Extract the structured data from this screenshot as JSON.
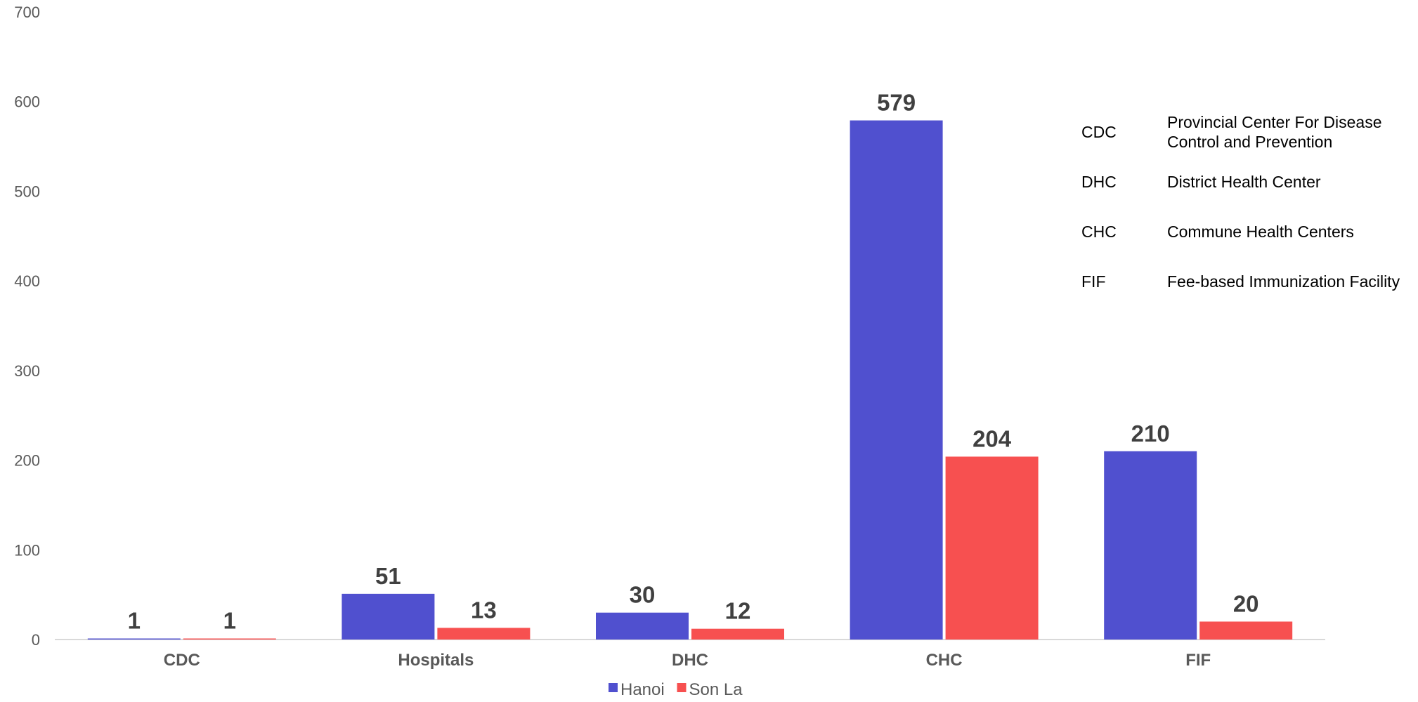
{
  "chart_data": {
    "type": "bar",
    "categories": [
      "CDC",
      "Hospitals",
      "DHC",
      "CHC",
      "FIF"
    ],
    "series": [
      {
        "name": "Hanoi",
        "values": [
          1,
          51,
          30,
          579,
          210
        ],
        "color": "#5050CF"
      },
      {
        "name": "Son La",
        "values": [
          1,
          13,
          12,
          204,
          20
        ],
        "color": "#F75050"
      }
    ],
    "ylim": [
      0,
      700
    ],
    "yticks": [
      0,
      100,
      200,
      300,
      400,
      500,
      600,
      700
    ],
    "grid": false,
    "legend_position": "bottom-center",
    "glossary": [
      {
        "abbr": "CDC",
        "lines": [
          "Provincial Center For Disease",
          "Control and Prevention"
        ]
      },
      {
        "abbr": "DHC",
        "lines": [
          "District Health Center"
        ]
      },
      {
        "abbr": "CHC",
        "lines": [
          "Commune Health Centers"
        ]
      },
      {
        "abbr": "FIF",
        "lines": [
          "Fee-based Immunization Facility"
        ]
      }
    ]
  }
}
